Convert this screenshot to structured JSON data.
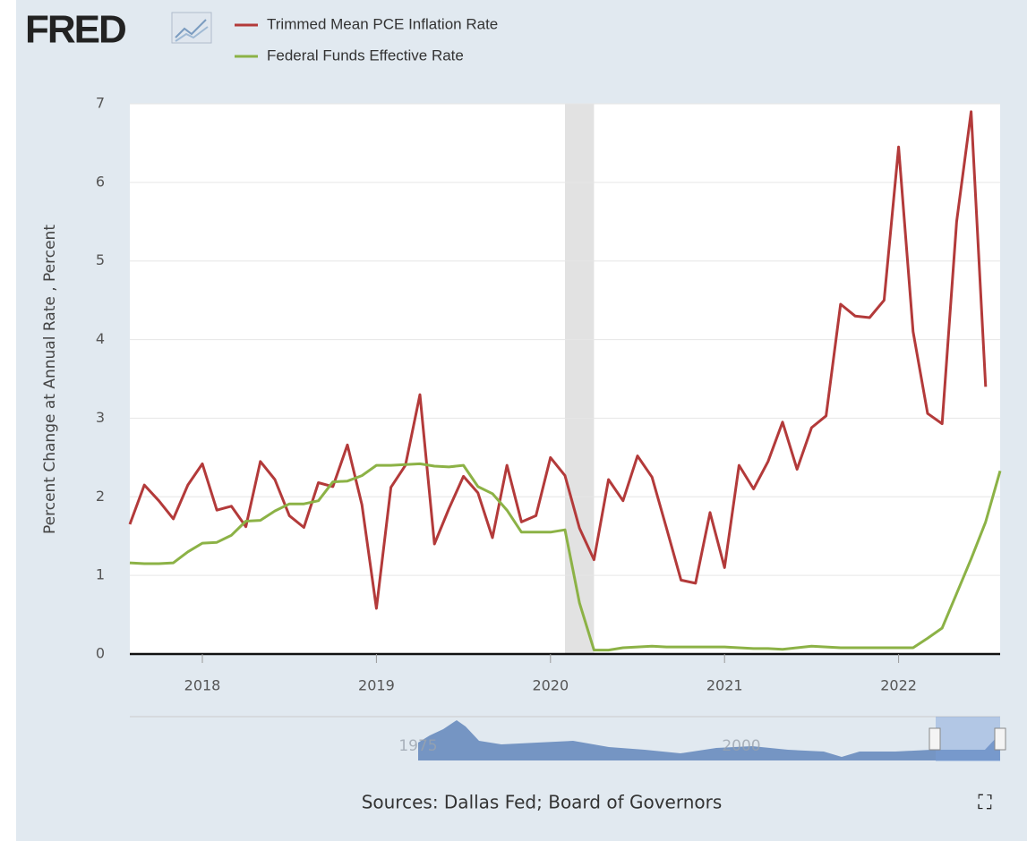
{
  "chart_data": {
    "type": "line",
    "logo": "FRED",
    "y_axis_label": "Percent Change at Annual Rate , Percent",
    "source": "Sources: Dallas Fed; Board of Governors",
    "x": [
      "2017-08",
      "2017-09",
      "2017-10",
      "2017-11",
      "2017-12",
      "2018-01",
      "2018-02",
      "2018-03",
      "2018-04",
      "2018-05",
      "2018-06",
      "2018-07",
      "2018-08",
      "2018-09",
      "2018-10",
      "2018-11",
      "2018-12",
      "2019-01",
      "2019-02",
      "2019-03",
      "2019-04",
      "2019-05",
      "2019-06",
      "2019-07",
      "2019-08",
      "2019-09",
      "2019-10",
      "2019-11",
      "2019-12",
      "2020-01",
      "2020-02",
      "2020-03",
      "2020-04",
      "2020-05",
      "2020-06",
      "2020-07",
      "2020-08",
      "2020-09",
      "2020-10",
      "2020-11",
      "2020-12",
      "2021-01",
      "2021-02",
      "2021-03",
      "2021-04",
      "2021-05",
      "2021-06",
      "2021-07",
      "2021-08",
      "2021-09",
      "2021-10",
      "2021-11",
      "2021-12",
      "2022-01",
      "2022-02",
      "2022-03",
      "2022-04",
      "2022-05",
      "2022-06",
      "2022-07",
      "2022-08"
    ],
    "series": [
      {
        "name": "Trimmed Mean PCE Inflation Rate",
        "color": "#b33a3a",
        "values": [
          1.65,
          2.15,
          1.95,
          1.72,
          2.15,
          2.42,
          1.83,
          1.88,
          1.62,
          2.45,
          2.22,
          1.76,
          1.61,
          2.18,
          2.13,
          2.66,
          1.9,
          0.58,
          2.12,
          2.4,
          3.3,
          1.4,
          1.85,
          2.26,
          2.05,
          1.48,
          2.4,
          1.68,
          1.76,
          2.5,
          2.27,
          1.6,
          1.2,
          2.22,
          1.95,
          2.52,
          2.25,
          1.6,
          0.94,
          0.9,
          1.8,
          1.1,
          2.4,
          2.1,
          2.45,
          2.95,
          2.35,
          2.88,
          3.03,
          4.45,
          4.3,
          4.28,
          4.5,
          6.45,
          4.1,
          3.06,
          2.93,
          5.5,
          6.9,
          3.4,
          null
        ]
      },
      {
        "name": "Federal Funds Effective Rate",
        "color": "#8cb246",
        "values": [
          1.16,
          1.15,
          1.15,
          1.16,
          1.3,
          1.41,
          1.42,
          1.51,
          1.69,
          1.7,
          1.82,
          1.91,
          1.91,
          1.95,
          2.19,
          2.2,
          2.27,
          2.4,
          2.4,
          2.41,
          2.42,
          2.39,
          2.38,
          2.4,
          2.13,
          2.04,
          1.83,
          1.55,
          1.55,
          1.55,
          1.58,
          0.65,
          0.05,
          0.05,
          0.08,
          0.09,
          0.1,
          0.09,
          0.09,
          0.09,
          0.09,
          0.09,
          0.08,
          0.07,
          0.07,
          0.06,
          0.08,
          0.1,
          0.09,
          0.08,
          0.08,
          0.08,
          0.08,
          0.08,
          0.08,
          0.2,
          0.33,
          0.77,
          1.21,
          1.68,
          2.33
        ]
      }
    ],
    "xlim": [
      "2017-08",
      "2022-08"
    ],
    "xticks": [
      {
        "value": "2018-01",
        "label": "2018"
      },
      {
        "value": "2019-01",
        "label": "2019"
      },
      {
        "value": "2020-01",
        "label": "2020"
      },
      {
        "value": "2021-01",
        "label": "2021"
      },
      {
        "value": "2022-01",
        "label": "2022"
      }
    ],
    "ylim": [
      0,
      7
    ],
    "yticks": [
      0,
      1,
      2,
      3,
      4,
      5,
      6,
      7
    ],
    "grid": true,
    "recessions": [
      [
        "2020-02",
        "2020-04"
      ]
    ],
    "navigator_labels": [
      "1975",
      "2000"
    ]
  }
}
